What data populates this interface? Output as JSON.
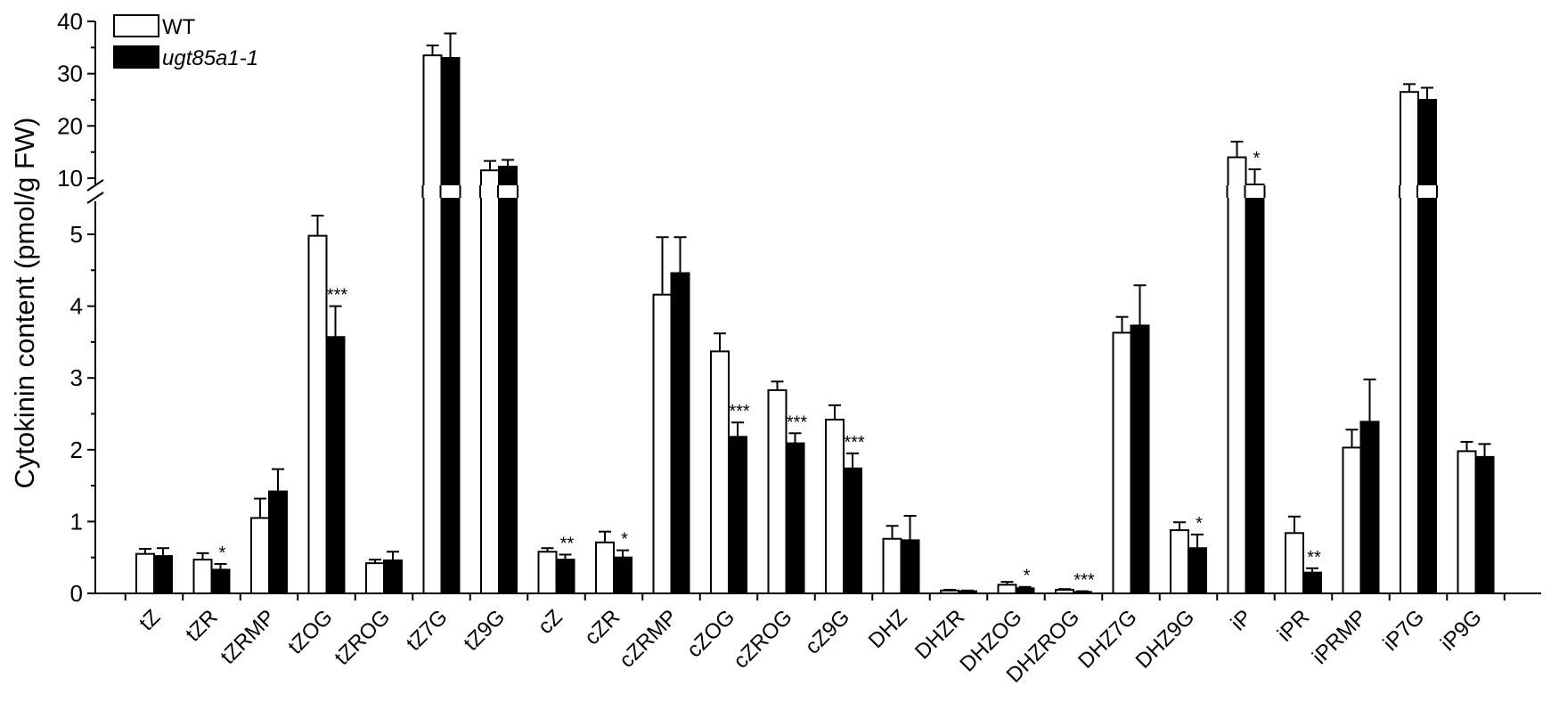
{
  "chart_data": {
    "type": "bar",
    "ylabel": "Cytokinin content (pmol/g FW)",
    "legend": {
      "placement": "top-left",
      "entries": [
        {
          "label": "WT",
          "italic": false
        },
        {
          "label": "ugt85a1-1",
          "italic": true
        }
      ]
    },
    "y_axis_broken": true,
    "lower_ylim": [
      0,
      5.5
    ],
    "upper_ylim": [
      10,
      40
    ],
    "lower_ticks": [
      "0",
      "1",
      "2",
      "3",
      "4",
      "5"
    ],
    "upper_ticks": [
      "10",
      "20",
      "30",
      "40"
    ],
    "categories": [
      "tZ",
      "tZR",
      "tZRMP",
      "tZOG",
      "tZROG",
      "tZ7G",
      "tZ9G",
      "cZ",
      "cZR",
      "cZRMP",
      "cZOG",
      "cZROG",
      "cZ9G",
      "DHZ",
      "DHZR",
      "DHZOG",
      "DHZROG",
      "DHZ7G",
      "DHZ9G",
      "iP",
      "iPR",
      "iPRMP",
      "iP7G",
      "iP9G"
    ],
    "series": [
      {
        "name": "WT",
        "fill": "#ffffff",
        "values": [
          0.55,
          0.47,
          1.05,
          4.98,
          0.42,
          33.5,
          11.5,
          0.58,
          0.71,
          4.16,
          3.37,
          2.83,
          2.42,
          0.76,
          0.04,
          0.12,
          0.05,
          3.63,
          0.88,
          14.0,
          0.84,
          2.03,
          26.5,
          1.98
        ],
        "errors": [
          0.07,
          0.09,
          0.27,
          0.28,
          0.05,
          1.9,
          1.8,
          0.05,
          0.15,
          0.8,
          0.25,
          0.12,
          0.2,
          0.18,
          0.01,
          0.04,
          0.01,
          0.22,
          0.11,
          3.0,
          0.23,
          0.25,
          1.5,
          0.13
        ]
      },
      {
        "name": "ugt85a1-1",
        "fill": "#000000",
        "values": [
          0.52,
          0.33,
          1.42,
          3.57,
          0.46,
          33.0,
          12.2,
          0.47,
          0.5,
          4.46,
          2.18,
          2.09,
          1.74,
          0.74,
          0.03,
          0.07,
          0.02,
          3.73,
          0.63,
          8.8,
          0.29,
          2.39,
          25.0,
          1.9
        ],
        "errors": [
          0.11,
          0.08,
          0.31,
          0.43,
          0.12,
          4.7,
          1.3,
          0.07,
          0.1,
          0.5,
          0.2,
          0.14,
          0.21,
          0.34,
          0.01,
          0.02,
          0.01,
          0.56,
          0.19,
          2.9,
          0.06,
          0.59,
          2.3,
          0.18
        ]
      }
    ],
    "significance": [
      {
        "category": "tZR",
        "text": "*"
      },
      {
        "category": "tZOG",
        "text": "***"
      },
      {
        "category": "cZ",
        "text": "**"
      },
      {
        "category": "cZR",
        "text": "*"
      },
      {
        "category": "cZOG",
        "text": "***"
      },
      {
        "category": "cZROG",
        "text": "***"
      },
      {
        "category": "cZ9G",
        "text": "***"
      },
      {
        "category": "DHZOG",
        "text": "*"
      },
      {
        "category": "DHZROG",
        "text": "***"
      },
      {
        "category": "DHZ9G",
        "text": "*"
      },
      {
        "category": "iP",
        "text": "*"
      },
      {
        "category": "iPR",
        "text": "**"
      }
    ]
  }
}
